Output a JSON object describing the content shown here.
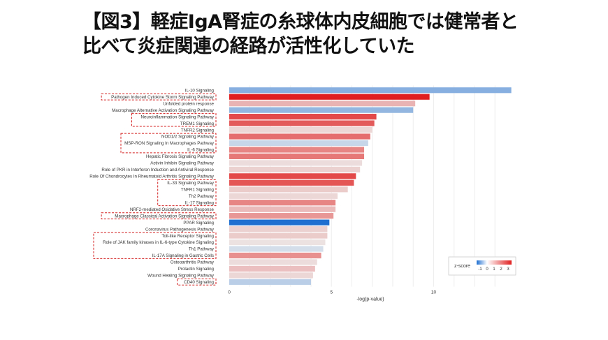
{
  "title": {
    "line1": "【図3】軽症IgA腎症の糸球体内皮細胞では健常者と",
    "line2": "比べて炎症関連の経路が活性化していた"
  },
  "colors": {
    "negative": "#1f6fd1",
    "neutral": "#eeeeee",
    "positive": "#e02020",
    "highlight_box": "#d42020",
    "grid": "#eeeeee"
  },
  "chart_data": {
    "type": "bar",
    "orientation": "horizontal",
    "xlabel": "-log(p-value)",
    "xlim": [
      0,
      13.9
    ],
    "xticks": [
      0,
      5,
      10
    ],
    "grid": true,
    "legend": {
      "title": "z-score",
      "ticks": [
        "-1",
        "0",
        "1",
        "2",
        "3"
      ],
      "range": [
        -1.5,
        3.5
      ],
      "placement": "bottom-right"
    },
    "categories": [
      "IL-10 Signaling",
      "Pathogen Induced Cytokine Storm Signaling Pathway",
      "Unfolded protein response",
      "Macrophage Alternative Activation Signaling Pathway",
      "Neuroinflammation Signaling Pathway",
      "TREM1 Signaling",
      "TNFR2 Signaling",
      "NOD1/2 Signaling Pathway",
      "MSP-RON Signaling In Macrophages Pathway",
      "IL-6 Signaling",
      "Hepatic Fibrosis Signaling Pathway",
      "Activin Inhibin Signaling Pathway",
      "Role of PKR in Interferon Induction and Antiviral Response",
      "Role Of Chondrocytes In Rheumatoid Arthritis Signaling Pathway",
      "IL-33 Signaling Pathway",
      "TNFR1 Signaling",
      "Th2 Pathway",
      "IL-17 Signaling",
      "NRF2-mediated Oxidative Stress Response",
      "Macrophage Classical Activation Signaling Pathway",
      "PPAR Signaling",
      "Coronavirus Pathogenesis Pathway",
      "Toll-like Receptor Signaling",
      "Role of JAK family kinases in IL-6-type Cytokine Signaling",
      "Th1 Pathway",
      "IL-17A Signaling in Gastric Cells",
      "Osteoarthritis Pathway",
      "Prolactin Signaling",
      "Wound Healing Signaling Pathway",
      "CD40 Signaling"
    ],
    "values": [
      13.8,
      9.8,
      9.1,
      9.0,
      7.2,
      7.1,
      7.0,
      6.9,
      6.8,
      6.6,
      6.6,
      6.5,
      6.4,
      6.2,
      6.1,
      5.8,
      5.3,
      5.2,
      5.2,
      5.1,
      4.9,
      4.8,
      4.8,
      4.7,
      4.6,
      4.5,
      4.3,
      4.2,
      4.1,
      4.0
    ],
    "zscores": [
      -0.8,
      3.5,
      1.0,
      -0.7,
      2.8,
      2.5,
      0.4,
      2.2,
      -0.3,
      1.8,
      2.0,
      0.3,
      0.5,
      2.8,
      2.6,
      0.6,
      0.4,
      1.8,
      0.9,
      1.5,
      -1.6,
      0.5,
      0.6,
      0.2,
      -0.2,
      1.6,
      0.3,
      0.8,
      0.4,
      -0.4
    ],
    "highlighted_groups": [
      [
        "Pathogen Induced Cytokine Storm Signaling Pathway"
      ],
      [
        "Neuroinflammation Signaling Pathway",
        "TREM1 Signaling"
      ],
      [
        "NOD1/2 Signaling Pathway",
        "MSP-RON Signaling In Macrophages Pathway",
        "IL-6 Signaling"
      ],
      [
        "IL-33 Signaling Pathway",
        "TNFR1 Signaling",
        "Th2 Pathway",
        "IL-17 Signaling"
      ],
      [
        "Macrophage Classical Activation Signaling Pathway"
      ],
      [
        "Toll-like Receptor Signaling",
        "Role of JAK family kinases in IL-6-type Cytokine Signaling",
        "Th1 Pathway",
        "IL-17A Signaling in Gastric Cells"
      ],
      [
        "CD40 Signaling"
      ]
    ]
  }
}
